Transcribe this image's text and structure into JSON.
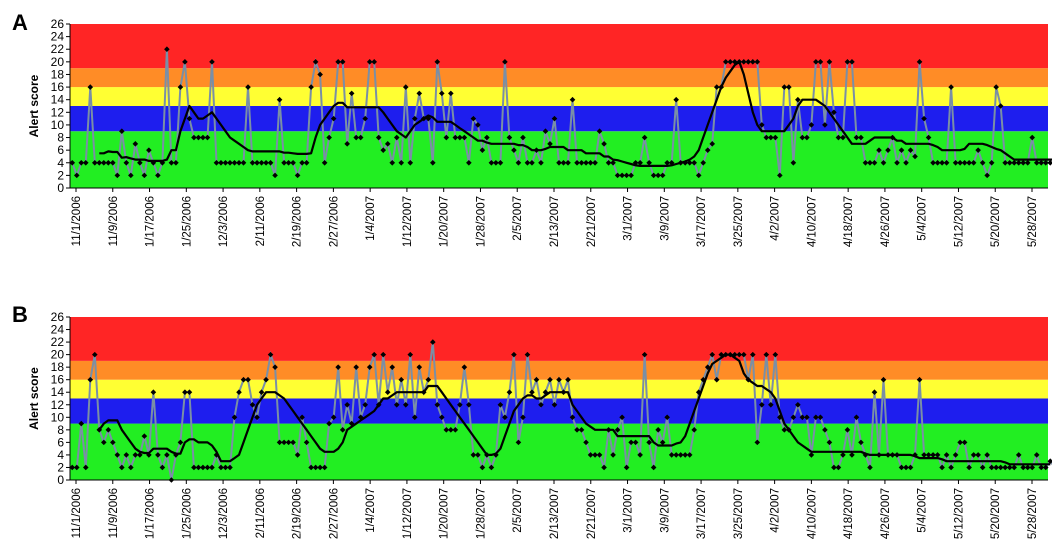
{
  "chart_data": [
    {
      "type": "line",
      "panel_label": "A",
      "ylabel": "Alert score",
      "ylim": [
        0,
        26
      ],
      "yticks": [
        0,
        2,
        4,
        6,
        8,
        10,
        12,
        14,
        16,
        18,
        20,
        22,
        24,
        26
      ],
      "x_tick_labels": [
        "11/1/2006",
        "11/9/2006",
        "1/17/2006",
        "1/25/2006",
        "12/3/2006",
        "2/11/2006",
        "2/19/2006",
        "2/27/2006",
        "1/4/2007",
        "1/12/2007",
        "1/20/2007",
        "1/28/2007",
        "2/5/2007",
        "2/13/2007",
        "2/21/2007",
        "3/1/2007",
        "3/9/2007",
        "3/17/2007",
        "3/25/2007",
        "4/2/2007",
        "4/10/2007",
        "4/18/2007",
        "4/26/2007",
        "5/4/2007",
        "5/12/2007",
        "5/20/2007",
        "5/28/2007"
      ],
      "bands": [
        {
          "from": 0,
          "to": 9,
          "color": "#22EE22"
        },
        {
          "from": 9,
          "to": 13,
          "color": "#1E1EEE"
        },
        {
          "from": 13,
          "to": 16,
          "color": "#FFFF33"
        },
        {
          "from": 16,
          "to": 19,
          "color": "#FF8C26"
        },
        {
          "from": 19,
          "to": 26,
          "color": "#FF2525"
        }
      ],
      "series": [
        {
          "values": [
            4,
            2,
            4,
            4,
            16,
            4,
            4,
            4,
            4,
            4,
            2,
            9,
            4,
            2,
            7,
            4,
            2,
            6,
            4,
            2,
            4,
            22,
            4,
            4,
            16,
            20,
            11,
            8,
            8,
            8,
            8,
            20,
            4,
            4,
            4,
            4,
            4,
            4,
            4,
            16,
            4,
            4,
            4,
            4,
            4,
            2,
            14,
            4,
            4,
            4,
            2,
            4,
            4,
            16,
            20,
            18,
            4,
            8,
            11,
            20,
            20,
            7,
            15,
            8,
            8,
            11,
            20,
            20,
            8,
            6,
            7,
            4,
            8,
            4,
            16,
            4,
            11,
            15,
            11,
            11,
            4,
            20,
            15,
            8,
            15,
            8,
            8,
            8,
            4,
            11,
            10,
            6,
            8,
            4,
            4,
            4,
            20,
            8,
            6,
            4,
            8,
            4,
            4,
            6,
            4,
            9,
            7,
            11,
            4,
            4,
            4,
            14,
            4,
            4,
            4,
            4,
            4,
            9,
            7,
            4,
            4,
            2,
            2,
            2,
            2,
            4,
            4,
            8,
            4,
            2,
            2,
            2,
            4,
            4,
            14,
            4,
            4,
            4,
            4,
            2,
            4,
            6,
            7,
            16,
            16,
            20,
            20,
            20,
            20,
            20,
            20,
            20,
            20,
            10,
            8,
            8,
            8,
            2,
            16,
            16,
            4,
            14,
            8,
            8,
            10,
            20,
            20,
            10,
            20,
            12,
            8,
            8,
            20,
            20,
            8,
            8,
            4,
            4,
            4,
            6,
            4,
            6,
            8,
            4,
            6,
            4,
            6,
            5,
            20,
            11,
            8,
            4,
            4,
            4,
            4,
            16,
            4,
            4,
            4,
            4,
            4,
            6,
            4,
            2,
            4,
            16,
            13,
            4,
            4,
            4,
            4,
            4,
            4,
            8,
            4,
            4,
            4,
            4,
            4,
            4,
            4,
            4,
            16,
            8,
            4,
            4,
            4
          ]
        },
        {
          "values": [
            null,
            null,
            null,
            null,
            null,
            null,
            5.5,
            5.5,
            5.8,
            5.7,
            5.7,
            4.8,
            4.9,
            4.7,
            4.5,
            4.5,
            4.5,
            4.3,
            4.3,
            4.3,
            4.3,
            4.5,
            6,
            6,
            9,
            11,
            13,
            12,
            11,
            11,
            11.5,
            12,
            11,
            10,
            9,
            8,
            7.5,
            7,
            6.5,
            6,
            5.8,
            5.8,
            5.8,
            5.8,
            5.8,
            5.8,
            5.8,
            5.6,
            5.6,
            5.5,
            5.4,
            5.4,
            5.4,
            5.5,
            8,
            10,
            11,
            12,
            13,
            13.5,
            13.5,
            12.8,
            12.8,
            12.8,
            12.8,
            12.8,
            12.8,
            12.8,
            12.8,
            12,
            11,
            10,
            9,
            8.5,
            8,
            9,
            10,
            10.5,
            11,
            11.5,
            11.2,
            10.5,
            10.5,
            10.5,
            10.5,
            10,
            9.5,
            9,
            8.5,
            8,
            7.5,
            7.5,
            7.2,
            7,
            7,
            7,
            7,
            7,
            7,
            6.8,
            6.8,
            6.5,
            6,
            6,
            6,
            6.2,
            6.5,
            6.5,
            6.5,
            6.5,
            6,
            6,
            6,
            6,
            5.5,
            5.5,
            5.5,
            5.5,
            5,
            5,
            4.5,
            4.4,
            4.2,
            4,
            3.8,
            3.6,
            3.5,
            3.5,
            3.5,
            3.5,
            3.5,
            3.5,
            3.5,
            3.6,
            3.8,
            4,
            4.2,
            4.5,
            5,
            6,
            8,
            10,
            12,
            14,
            16,
            17.5,
            18.5,
            19.5,
            20,
            18,
            15,
            12,
            10,
            9,
            9,
            9,
            9,
            9,
            9,
            10,
            11,
            13,
            14,
            14,
            14,
            14,
            13.5,
            13,
            12,
            11,
            10,
            9,
            8,
            7,
            7,
            7,
            7,
            7.5,
            8,
            8,
            8,
            8,
            8,
            7.5,
            7.5,
            7,
            7,
            7,
            7,
            7,
            7,
            6.8,
            6.5,
            6,
            6,
            6,
            6,
            6,
            6.2,
            7,
            7,
            7,
            7,
            6.8,
            6.5,
            6.2,
            6,
            5.5,
            5,
            4.5,
            4.5,
            4.5,
            4.5,
            4.5,
            4.5,
            4.5,
            4.5,
            4.5,
            4.5,
            4.5,
            5,
            6,
            6.2,
            6.2,
            6.2,
            6.2
          ]
        }
      ]
    },
    {
      "type": "line",
      "panel_label": "B",
      "ylabel": "Alert score",
      "ylim": [
        0,
        26
      ],
      "yticks": [
        0,
        2,
        4,
        6,
        8,
        10,
        12,
        14,
        16,
        18,
        20,
        22,
        24,
        26
      ],
      "x_tick_labels": [
        "11/1/2006",
        "11/9/2006",
        "1/17/2006",
        "1/25/2006",
        "12/3/2006",
        "2/11/2006",
        "2/19/2006",
        "2/27/2006",
        "1/4/2007",
        "1/12/2007",
        "1/20/2007",
        "1/28/2007",
        "2/5/2007",
        "2/13/2007",
        "2/21/2007",
        "3/1/2007",
        "3/9/2007",
        "3/17/2007",
        "3/25/2007",
        "4/2/2007",
        "4/10/2007",
        "4/18/2007",
        "4/26/2007",
        "5/4/2007",
        "5/12/2007",
        "5/20/2007",
        "5/28/2007"
      ],
      "bands": [
        {
          "from": 0,
          "to": 9,
          "color": "#22EE22"
        },
        {
          "from": 9,
          "to": 13,
          "color": "#1E1EEE"
        },
        {
          "from": 13,
          "to": 16,
          "color": "#FFFF33"
        },
        {
          "from": 16,
          "to": 19,
          "color": "#FF8C26"
        },
        {
          "from": 19,
          "to": 26,
          "color": "#FF2525"
        }
      ],
      "series": [
        {
          "values": [
            2,
            2,
            9,
            2,
            16,
            20,
            8,
            6,
            8,
            6,
            4,
            2,
            4,
            2,
            4,
            4,
            7,
            4,
            14,
            4,
            2,
            4,
            0,
            4,
            6,
            14,
            14,
            2,
            2,
            2,
            2,
            2,
            4,
            2,
            2,
            2,
            10,
            14,
            16,
            16,
            12,
            10,
            14,
            16,
            20,
            18,
            6,
            6,
            6,
            6,
            4,
            10,
            6,
            2,
            2,
            2,
            2,
            9,
            10,
            18,
            8,
            12,
            9,
            18,
            10,
            12,
            18,
            20,
            12,
            20,
            14,
            18,
            12,
            16,
            12,
            20,
            10,
            18,
            14,
            16,
            22,
            12,
            10,
            8,
            8,
            8,
            12,
            18,
            12,
            4,
            4,
            2,
            4,
            2,
            4,
            12,
            10,
            14,
            20,
            6,
            10,
            20,
            14,
            16,
            12,
            14,
            16,
            12,
            16,
            14,
            16,
            10,
            8,
            8,
            6,
            4,
            4,
            4,
            2,
            8,
            4,
            8,
            10,
            2,
            6,
            6,
            4,
            20,
            6,
            2,
            8,
            6,
            10,
            4,
            4,
            4,
            4,
            4,
            8,
            14,
            16,
            18,
            20,
            16,
            20,
            20,
            20,
            20,
            20,
            20,
            16,
            20,
            6,
            12,
            20,
            12,
            20,
            10,
            8,
            8,
            10,
            12,
            10,
            10,
            4,
            10,
            10,
            8,
            6,
            2,
            2,
            4,
            8,
            4,
            10,
            6,
            4,
            2,
            14,
            4,
            16,
            4,
            4,
            4,
            2,
            2,
            2,
            4,
            16,
            4,
            4,
            4,
            4,
            2,
            4,
            2,
            4,
            6,
            6,
            2,
            4,
            4,
            2,
            4,
            2,
            2,
            2,
            2,
            2,
            2,
            4,
            2,
            2,
            2,
            4,
            2,
            2,
            3,
            2,
            2,
            2,
            2,
            2,
            2
          ]
        },
        {
          "values": [
            null,
            null,
            null,
            null,
            null,
            null,
            8,
            9,
            9.5,
            9.5,
            9.5,
            8,
            7,
            6,
            5,
            4.5,
            4.3,
            4.3,
            5,
            5,
            5,
            5,
            4.5,
            4.2,
            4.2,
            6,
            6.5,
            6.5,
            6,
            6,
            6,
            5.5,
            4.5,
            3,
            3,
            3,
            3.5,
            4,
            6,
            8,
            10,
            12,
            13,
            14,
            14,
            14,
            13.5,
            13,
            12,
            11,
            10,
            9,
            8,
            7,
            6,
            5,
            4.5,
            4.5,
            4.5,
            5,
            6,
            8,
            8.5,
            9,
            9.5,
            10,
            10.5,
            11,
            12,
            13,
            13,
            13.5,
            14,
            14,
            14,
            14,
            14,
            14,
            14,
            15,
            15,
            15,
            14,
            13,
            12,
            11,
            10,
            9,
            8,
            7,
            6,
            5,
            4,
            4,
            4.2,
            5,
            7,
            9,
            11,
            12,
            13,
            13.5,
            13.5,
            13,
            13,
            13.5,
            14,
            14,
            14,
            14,
            14,
            12,
            11,
            10,
            9,
            8.5,
            8,
            8,
            8,
            8,
            8,
            7,
            7,
            7,
            7,
            7,
            7,
            7,
            7,
            6,
            5.5,
            5.5,
            5.5,
            5.5,
            5.8,
            6,
            7,
            9,
            11,
            13,
            15,
            17,
            18.5,
            19,
            19.5,
            20,
            20,
            19.5,
            19,
            17,
            16,
            15.5,
            15,
            15,
            14.5,
            14,
            13,
            11,
            9,
            8,
            7,
            6,
            5.5,
            5,
            4.5,
            4.5,
            4.5,
            4.5,
            4.5,
            4.5,
            4.5,
            4.5,
            4.5,
            4.5,
            4.5,
            4.5,
            4.2,
            4,
            4,
            4,
            4,
            4,
            4,
            4,
            4,
            4,
            4,
            3.8,
            3.5,
            3.5,
            3.5,
            3.5,
            3.5,
            3.3,
            3,
            3,
            3,
            3,
            3,
            3,
            3,
            3,
            3,
            3,
            3,
            3,
            3,
            2.8,
            2.5,
            2.5,
            2.5,
            2.5,
            2.5,
            2.5,
            2.5,
            2.5,
            2.5,
            2.5
          ]
        }
      ]
    }
  ]
}
